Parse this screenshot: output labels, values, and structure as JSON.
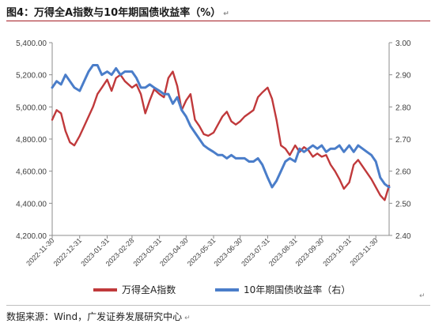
{
  "title": "图4：万得全A指数与10年期国债收益率（%）",
  "source": "数据来源：Wind，广发证券发展研究中心",
  "para_mark": "↵",
  "chart_data": {
    "type": "line",
    "title": "",
    "xlabel": "",
    "ylabel": "",
    "y_left_lim": [
      4200,
      5400
    ],
    "y_right_lim": [
      2.4,
      3.0
    ],
    "y_left_ticks": [
      "5,400.00",
      "5,200.00",
      "5,000.00",
      "4,800.00",
      "4,600.00",
      "4,400.00",
      "4,200.00"
    ],
    "y_left_tick_values": [
      5400,
      5200,
      5000,
      4800,
      4600,
      4400,
      4200
    ],
    "y_right_ticks": [
      "3.00",
      "2.90",
      "2.80",
      "2.70",
      "2.60",
      "2.50",
      "2.40"
    ],
    "y_right_tick_values": [
      3.0,
      2.9,
      2.8,
      2.7,
      2.6,
      2.5,
      2.4
    ],
    "x_ticks": [
      "2022-11-30",
      "2022-12-31",
      "2023-01-31",
      "2023-02-28",
      "2023-03-31",
      "2023-04-30",
      "2023-05-31",
      "2023-06-30",
      "2023-07-31",
      "2023-08-31",
      "2023-09-30",
      "2023-10-31",
      "2023-11-30"
    ],
    "grid": "none",
    "legend": "bottom",
    "series": [
      {
        "name": "万得全A指数",
        "axis": "left",
        "color": "#c0393b",
        "x": [
          "2022-11-30",
          "2022-12-05",
          "2022-12-10",
          "2022-12-15",
          "2022-12-20",
          "2022-12-25",
          "2022-12-31",
          "2023-01-05",
          "2023-01-10",
          "2023-01-15",
          "2023-01-20",
          "2023-01-25",
          "2023-01-31",
          "2023-02-05",
          "2023-02-10",
          "2023-02-15",
          "2023-02-20",
          "2023-02-28",
          "2023-03-05",
          "2023-03-10",
          "2023-03-15",
          "2023-03-20",
          "2023-03-25",
          "2023-03-31",
          "2023-04-05",
          "2023-04-10",
          "2023-04-15",
          "2023-04-20",
          "2023-04-25",
          "2023-04-30",
          "2023-05-05",
          "2023-05-10",
          "2023-05-15",
          "2023-05-20",
          "2023-05-25",
          "2023-05-31",
          "2023-06-05",
          "2023-06-10",
          "2023-06-15",
          "2023-06-20",
          "2023-06-25",
          "2023-06-30",
          "2023-07-05",
          "2023-07-10",
          "2023-07-15",
          "2023-07-20",
          "2023-07-25",
          "2023-07-31",
          "2023-08-05",
          "2023-08-10",
          "2023-08-15",
          "2023-08-20",
          "2023-08-25",
          "2023-08-31",
          "2023-09-05",
          "2023-09-10",
          "2023-09-15",
          "2023-09-20",
          "2023-09-25",
          "2023-09-30",
          "2023-10-05",
          "2023-10-10",
          "2023-10-15",
          "2023-10-20",
          "2023-10-25",
          "2023-10-31",
          "2023-11-05",
          "2023-11-10",
          "2023-11-15",
          "2023-11-20",
          "2023-11-25",
          "2023-11-30",
          "2023-12-05",
          "2023-12-10",
          "2023-12-15"
        ],
        "values": [
          4920,
          4980,
          4960,
          4850,
          4780,
          4760,
          4820,
          4880,
          4940,
          5000,
          5080,
          5120,
          5170,
          5100,
          5180,
          5200,
          5160,
          5120,
          5140,
          5080,
          4960,
          5040,
          5110,
          5080,
          5060,
          5180,
          5220,
          5130,
          4980,
          5040,
          5080,
          4920,
          4880,
          4830,
          4820,
          4840,
          4890,
          4940,
          4970,
          4910,
          4890,
          4910,
          4940,
          4960,
          4980,
          5060,
          5090,
          5120,
          5050,
          4920,
          4760,
          4740,
          4700,
          4760,
          4720,
          4750,
          4730,
          4690,
          4710,
          4690,
          4700,
          4640,
          4600,
          4550,
          4490,
          4530,
          4640,
          4670,
          4630,
          4590,
          4550,
          4500,
          4450,
          4420,
          4510
        ]
      },
      {
        "name": "10年期国债收益率（右）",
        "axis": "right",
        "color": "#4a7dc9",
        "x": [
          "2022-11-30",
          "2022-12-05",
          "2022-12-10",
          "2022-12-15",
          "2022-12-20",
          "2022-12-25",
          "2022-12-31",
          "2023-01-05",
          "2023-01-10",
          "2023-01-15",
          "2023-01-20",
          "2023-01-25",
          "2023-01-31",
          "2023-02-05",
          "2023-02-10",
          "2023-02-15",
          "2023-02-20",
          "2023-02-28",
          "2023-03-05",
          "2023-03-10",
          "2023-03-15",
          "2023-03-20",
          "2023-03-25",
          "2023-03-31",
          "2023-04-05",
          "2023-04-10",
          "2023-04-15",
          "2023-04-20",
          "2023-04-25",
          "2023-04-30",
          "2023-05-05",
          "2023-05-10",
          "2023-05-15",
          "2023-05-20",
          "2023-05-25",
          "2023-05-31",
          "2023-06-05",
          "2023-06-10",
          "2023-06-15",
          "2023-06-20",
          "2023-06-25",
          "2023-06-30",
          "2023-07-05",
          "2023-07-10",
          "2023-07-15",
          "2023-07-20",
          "2023-07-25",
          "2023-07-31",
          "2023-08-05",
          "2023-08-10",
          "2023-08-15",
          "2023-08-20",
          "2023-08-25",
          "2023-08-31",
          "2023-09-05",
          "2023-09-10",
          "2023-09-15",
          "2023-09-20",
          "2023-09-25",
          "2023-09-30",
          "2023-10-05",
          "2023-10-10",
          "2023-10-15",
          "2023-10-20",
          "2023-10-25",
          "2023-10-31",
          "2023-11-05",
          "2023-11-10",
          "2023-11-15",
          "2023-11-20",
          "2023-11-25",
          "2023-11-30",
          "2023-12-05",
          "2023-12-10",
          "2023-12-15"
        ],
        "values": [
          2.86,
          2.88,
          2.87,
          2.9,
          2.88,
          2.86,
          2.85,
          2.88,
          2.91,
          2.93,
          2.93,
          2.9,
          2.91,
          2.9,
          2.92,
          2.9,
          2.91,
          2.91,
          2.89,
          2.86,
          2.86,
          2.87,
          2.86,
          2.85,
          2.84,
          2.84,
          2.81,
          2.83,
          2.79,
          2.77,
          2.74,
          2.72,
          2.7,
          2.68,
          2.67,
          2.66,
          2.65,
          2.65,
          2.64,
          2.65,
          2.64,
          2.64,
          2.64,
          2.63,
          2.63,
          2.64,
          2.62,
          2.58,
          2.55,
          2.57,
          2.6,
          2.63,
          2.64,
          2.63,
          2.67,
          2.66,
          2.67,
          2.68,
          2.67,
          2.68,
          2.66,
          2.67,
          2.67,
          2.68,
          2.66,
          2.68,
          2.66,
          2.68,
          2.67,
          2.66,
          2.65,
          2.63,
          2.58,
          2.56,
          2.55
        ]
      }
    ]
  }
}
